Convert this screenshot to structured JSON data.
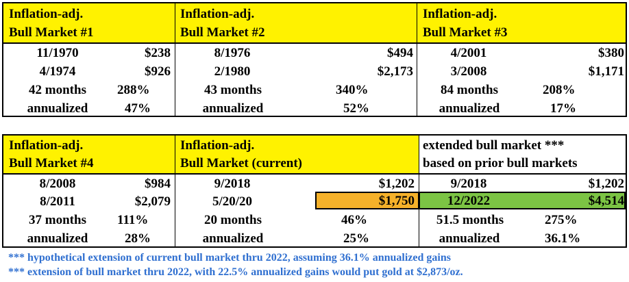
{
  "table_top": {
    "headers": [
      {
        "line1": "Inflation-adj.",
        "line2": "Bull Market #1"
      },
      {
        "line1": "Inflation-adj.",
        "line2": "Bull Market #2"
      },
      {
        "line1": "Inflation-adj.",
        "line2": "Bull Market #3"
      }
    ],
    "blocks": [
      {
        "start_date": "11/1970",
        "start_price": "$238",
        "end_date": "4/1974",
        "end_price": "$926",
        "duration": "42 months",
        "gain": "288%",
        "annualized_label": "annualized",
        "annualized": "47%"
      },
      {
        "start_date": "8/1976",
        "start_price": "$494",
        "end_date": "2/1980",
        "end_price": "$2,173",
        "duration": "43 months",
        "gain": "340%",
        "annualized_label": "annualized",
        "annualized": "52%"
      },
      {
        "start_date": "4/2001",
        "start_price": "$380",
        "end_date": "3/2008",
        "end_price": "$1,171",
        "duration": "84 months",
        "gain": "208%",
        "annualized_label": "annualized",
        "annualized": "17%"
      }
    ]
  },
  "table_bottom": {
    "headers": [
      {
        "line1": "Inflation-adj.",
        "line2": "Bull Market #4"
      },
      {
        "line1": "Inflation-adj.",
        "line2": "Bull Market (current)"
      },
      {
        "line1": "extended bull market ***",
        "line2": "based on prior bull markets"
      }
    ],
    "blocks": [
      {
        "start_date": "8/2008",
        "start_price": "$984",
        "end_date": "8/2011",
        "end_price": "$2,079",
        "duration": "37 months",
        "gain": "111%",
        "annualized_label": "annualized",
        "annualized": "28%"
      },
      {
        "start_date": "9/2018",
        "start_price": "$1,202",
        "end_date": "5/20/20",
        "end_price": "$1,750",
        "duration": "20 months",
        "gain": "46%",
        "annualized_label": "annualized",
        "annualized": "25%"
      },
      {
        "start_date": "9/2018",
        "start_price": "$1,202",
        "end_date": "12/2022",
        "end_price": "$4,514",
        "duration": "51.5 months",
        "gain": "275%",
        "annualized_label": "annualized",
        "annualized": "36.1%"
      }
    ]
  },
  "highlight_colors": {
    "header": "#fff200",
    "current_price": "#f5b12a",
    "extended_price": "#7cc444"
  },
  "notes": [
    "*** hypothetical extension of current bull market thru 2022, assuming 36.1% annualized gains",
    "*** extension of bull market thru 2022, with 22.5% annualized gains would put gold at $2,873/oz."
  ]
}
